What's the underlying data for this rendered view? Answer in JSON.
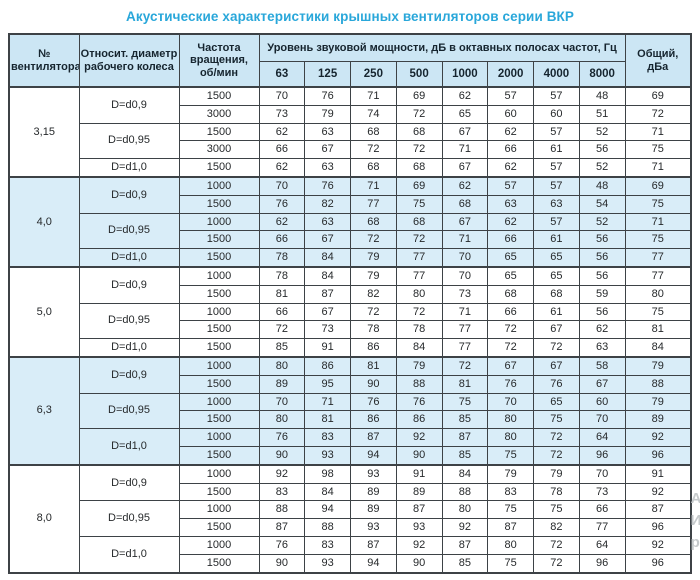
{
  "title": "Акустические характеристики крышных вентиляторов серии ВКР",
  "colors": {
    "title_accent": "#29a7da",
    "header_bg": "#cce6f4",
    "shaded_group_bg": "#d9edf8",
    "border": "#3d4246"
  },
  "table": {
    "headers": {
      "fan_number": "№ вентилятора",
      "diameter": "Относит. диаметр рабочего колеса",
      "speed": "Частота вращения, об/мин",
      "spl_group": "Уровень звуковой мощности, дБ в октавных полосах частот, Гц",
      "frequencies": [
        "63",
        "125",
        "250",
        "500",
        "1000",
        "2000",
        "4000",
        "8000"
      ],
      "total": "Общий, дБа"
    },
    "groups": [
      {
        "fan": "3,15",
        "shaded": false,
        "diameters": [
          {
            "label": "D=d0,9",
            "rows": [
              {
                "speed": "1500",
                "levels": [
                  70,
                  76,
                  71,
                  69,
                  62,
                  57,
                  57,
                  48
                ],
                "total": 69
              },
              {
                "speed": "3000",
                "levels": [
                  73,
                  79,
                  74,
                  72,
                  65,
                  60,
                  60,
                  51
                ],
                "total": 72
              }
            ]
          },
          {
            "label": "D=d0,95",
            "rows": [
              {
                "speed": "1500",
                "levels": [
                  62,
                  63,
                  68,
                  68,
                  67,
                  62,
                  57,
                  52
                ],
                "total": 71
              },
              {
                "speed": "3000",
                "levels": [
                  66,
                  67,
                  72,
                  72,
                  71,
                  66,
                  61,
                  56
                ],
                "total": 75
              }
            ]
          },
          {
            "label": "D=d1,0",
            "rows": [
              {
                "speed": "1500",
                "levels": [
                  62,
                  63,
                  68,
                  68,
                  67,
                  62,
                  57,
                  52
                ],
                "total": 71
              }
            ]
          }
        ]
      },
      {
        "fan": "4,0",
        "shaded": true,
        "diameters": [
          {
            "label": "D=d0,9",
            "rows": [
              {
                "speed": "1000",
                "levels": [
                  70,
                  76,
                  71,
                  69,
                  62,
                  57,
                  57,
                  48
                ],
                "total": 69
              },
              {
                "speed": "1500",
                "levels": [
                  76,
                  82,
                  77,
                  75,
                  68,
                  63,
                  63,
                  54
                ],
                "total": 75
              }
            ]
          },
          {
            "label": "D=d0,95",
            "rows": [
              {
                "speed": "1000",
                "levels": [
                  62,
                  63,
                  68,
                  68,
                  67,
                  62,
                  57,
                  52
                ],
                "total": 71
              },
              {
                "speed": "1500",
                "levels": [
                  66,
                  67,
                  72,
                  72,
                  71,
                  66,
                  61,
                  56
                ],
                "total": 75
              }
            ]
          },
          {
            "label": "D=d1,0",
            "rows": [
              {
                "speed": "1500",
                "levels": [
                  78,
                  84,
                  79,
                  77,
                  70,
                  65,
                  65,
                  56
                ],
                "total": 77
              }
            ]
          }
        ]
      },
      {
        "fan": "5,0",
        "shaded": false,
        "diameters": [
          {
            "label": "D=d0,9",
            "rows": [
              {
                "speed": "1000",
                "levels": [
                  78,
                  84,
                  79,
                  77,
                  70,
                  65,
                  65,
                  56
                ],
                "total": 77
              },
              {
                "speed": "1500",
                "levels": [
                  81,
                  87,
                  82,
                  80,
                  73,
                  68,
                  68,
                  59
                ],
                "total": 80
              }
            ]
          },
          {
            "label": "D=d0,95",
            "rows": [
              {
                "speed": "1000",
                "levels": [
                  66,
                  67,
                  72,
                  72,
                  71,
                  66,
                  61,
                  56
                ],
                "total": 75
              },
              {
                "speed": "1500",
                "levels": [
                  72,
                  73,
                  78,
                  78,
                  77,
                  72,
                  67,
                  62
                ],
                "total": 81
              }
            ]
          },
          {
            "label": "D=d1,0",
            "rows": [
              {
                "speed": "1500",
                "levels": [
                  85,
                  91,
                  86,
                  84,
                  77,
                  72,
                  72,
                  63
                ],
                "total": 84
              }
            ]
          }
        ]
      },
      {
        "fan": "6,3",
        "shaded": true,
        "diameters": [
          {
            "label": "D=d0,9",
            "rows": [
              {
                "speed": "1000",
                "levels": [
                  80,
                  86,
                  81,
                  79,
                  72,
                  67,
                  67,
                  58
                ],
                "total": 79
              },
              {
                "speed": "1500",
                "levels": [
                  89,
                  95,
                  90,
                  88,
                  81,
                  76,
                  76,
                  67
                ],
                "total": 88
              }
            ]
          },
          {
            "label": "D=d0,95",
            "rows": [
              {
                "speed": "1000",
                "levels": [
                  70,
                  71,
                  76,
                  76,
                  75,
                  70,
                  65,
                  60
                ],
                "total": 79
              },
              {
                "speed": "1500",
                "levels": [
                  80,
                  81,
                  86,
                  86,
                  85,
                  80,
                  75,
                  70
                ],
                "total": 89
              }
            ]
          },
          {
            "label": "D=d1,0",
            "rows": [
              {
                "speed": "1000",
                "levels": [
                  76,
                  83,
                  87,
                  92,
                  87,
                  80,
                  72,
                  64
                ],
                "total": 92
              },
              {
                "speed": "1500",
                "levels": [
                  90,
                  93,
                  94,
                  90,
                  85,
                  75,
                  72,
                  96
                ],
                "total": 96
              }
            ]
          }
        ]
      },
      {
        "fan": "8,0",
        "shaded": false,
        "diameters": [
          {
            "label": "D=d0,9",
            "rows": [
              {
                "speed": "1000",
                "levels": [
                  92,
                  98,
                  93,
                  91,
                  84,
                  79,
                  79,
                  70
                ],
                "total": 91
              },
              {
                "speed": "1500",
                "levels": [
                  83,
                  84,
                  89,
                  89,
                  88,
                  83,
                  78,
                  73
                ],
                "total": 92
              }
            ]
          },
          {
            "label": "D=d0,95",
            "rows": [
              {
                "speed": "1000",
                "levels": [
                  88,
                  94,
                  89,
                  87,
                  80,
                  75,
                  75,
                  66
                ],
                "total": 87
              },
              {
                "speed": "1500",
                "levels": [
                  87,
                  88,
                  93,
                  93,
                  92,
                  87,
                  82,
                  77
                ],
                "total": 96
              }
            ]
          },
          {
            "label": "D=d1,0",
            "rows": [
              {
                "speed": "1000",
                "levels": [
                  76,
                  83,
                  87,
                  92,
                  87,
                  80,
                  72,
                  64
                ],
                "total": 92
              },
              {
                "speed": "1500",
                "levels": [
                  90,
                  93,
                  94,
                  90,
                  85,
                  75,
                  72,
                  96
                ],
                "total": 96
              }
            ]
          }
        ]
      }
    ]
  },
  "watermark": {
    "lines": [
      "Ак",
      "Ит",
      "ра"
    ]
  }
}
